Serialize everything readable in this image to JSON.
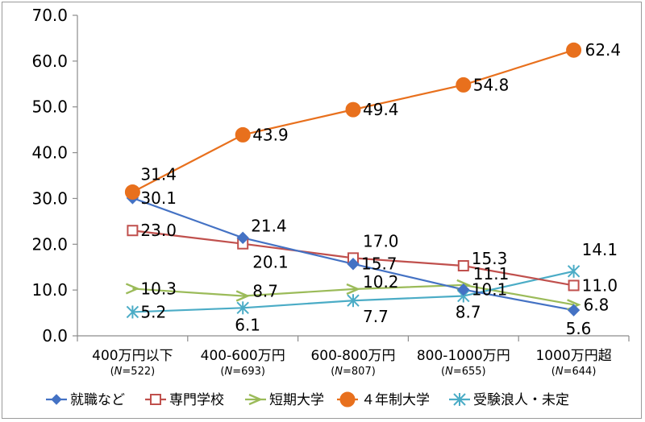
{
  "chart_data": {
    "type": "line",
    "categories": [
      "400万円以下",
      "400-600万円",
      "600-800万円",
      "800-1000万円",
      "1000万円超"
    ],
    "category_n": [
      "522",
      "693",
      "807",
      "655",
      "644"
    ],
    "n_symbol": "N",
    "ylim": [
      0,
      70
    ],
    "yticks": [
      "0.0",
      "10.0",
      "20.0",
      "30.0",
      "40.0",
      "50.0",
      "60.0",
      "70.0"
    ],
    "grid": false,
    "legend_position": "bottom",
    "series": [
      {
        "name": "就職など",
        "values": [
          30.1,
          21.4,
          15.7,
          10.1,
          5.6
        ],
        "color": "#4472c4",
        "marker": "diamond",
        "labels": [
          "30.1",
          "21.4",
          "15.7",
          "10.1",
          "5.6"
        ]
      },
      {
        "name": "専門学校",
        "values": [
          23.0,
          20.1,
          17.0,
          15.3,
          11.0
        ],
        "color": "#c0504d",
        "marker": "square-open",
        "labels": [
          "23.0",
          "20.1",
          "17.0",
          "15.3",
          "11.0"
        ]
      },
      {
        "name": "短期大学",
        "values": [
          10.3,
          8.7,
          10.2,
          11.1,
          6.8
        ],
        "color": "#9bbb59",
        "marker": "triangle-open",
        "labels": [
          "10.3",
          "8.7",
          "10.2",
          "11.1",
          "6.8"
        ]
      },
      {
        "name": "４年制大学",
        "values": [
          31.4,
          43.9,
          49.4,
          54.8,
          62.4
        ],
        "color": "#e8701d",
        "marker": "circle",
        "labels": [
          "31.4",
          "43.9",
          "49.4",
          "54.8",
          "62.4"
        ]
      },
      {
        "name": "受験浪人・未定",
        "values": [
          5.2,
          6.1,
          7.7,
          8.7,
          14.1
        ],
        "color": "#4bacc6",
        "marker": "asterisk",
        "labels": [
          "5.2",
          "6.1",
          "7.7",
          "8.7",
          "14.1"
        ]
      }
    ]
  }
}
